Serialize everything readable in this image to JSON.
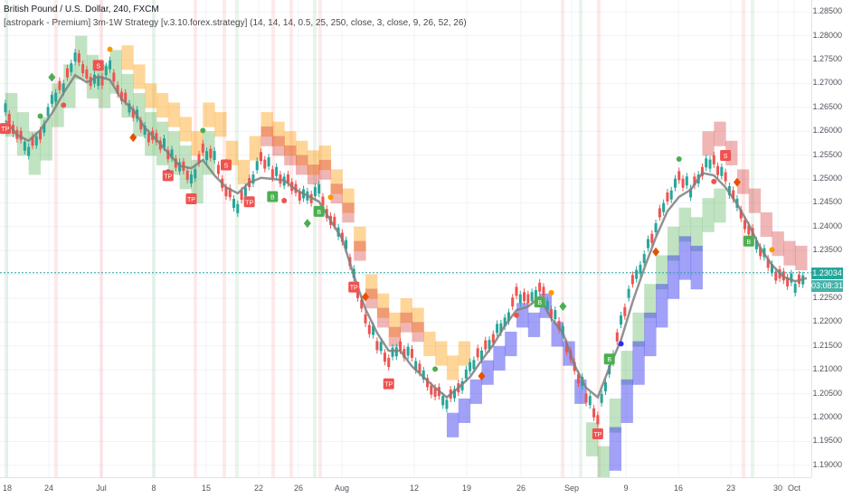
{
  "chart": {
    "symbol_line": "British Pound / U.S. Dollar, 240, FXCM",
    "indicator_line": "[astropark - Premium] 3m-1W Strategy [v.3.10.forex.strategy] (14, 14, 14, 0.5, 25, 250, close, 3, close, 9, 26, 52, 26)",
    "last_price": "1.23034",
    "countdown": "03:08:31",
    "price_axis_ticks": [
      "1.28500",
      "1.28000",
      "1.27500",
      "1.27000",
      "1.26500",
      "1.26000",
      "1.25500",
      "1.25000",
      "1.24500",
      "1.24000",
      "1.23500",
      "1.23000",
      "1.22500",
      "1.22000",
      "1.21500",
      "1.21000",
      "1.20500",
      "1.20000",
      "1.19500",
      "1.19000"
    ],
    "time_axis_labels": [
      "18",
      "24",
      "Jul",
      "8",
      "15",
      "22",
      "26",
      "Aug",
      "12",
      "19",
      "26",
      "Sep",
      "9",
      "16",
      "23",
      "30",
      "Oct"
    ],
    "marker_labels": {
      "take_profit": "TP",
      "sell": "S",
      "buy": "B"
    },
    "colors": {
      "up_candle": "#26a69a",
      "down_candle": "#ef5350",
      "cloud_green": "#4caf50",
      "cloud_orange": "#ff9800",
      "cloud_red": "#d32f2f",
      "cloud_blue": "#2f2ff0",
      "price_tag": "#26a69a"
    }
  },
  "chart_data": {
    "type": "candlestick",
    "title": "British Pound / U.S. Dollar, 240, FXCM",
    "ylim": [
      1.1875,
      1.2875
    ],
    "x_categories": [
      "18",
      "24",
      "Jul",
      "8",
      "15",
      "22",
      "26",
      "Aug",
      "12",
      "19",
      "26",
      "Sep",
      "9",
      "16",
      "23",
      "30",
      "Oct"
    ],
    "price_path": [
      1.264,
      1.26,
      1.256,
      1.259,
      1.266,
      1.27,
      1.276,
      1.272,
      1.27,
      1.273,
      1.268,
      1.264,
      1.26,
      1.258,
      1.256,
      1.253,
      1.25,
      1.256,
      1.254,
      1.248,
      1.244,
      1.249,
      1.254,
      1.252,
      1.25,
      1.248,
      1.246,
      1.247,
      1.242,
      1.238,
      1.23,
      1.22,
      1.216,
      1.212,
      1.215,
      1.213,
      1.208,
      1.206,
      1.203,
      1.206,
      1.21,
      1.214,
      1.217,
      1.22,
      1.226,
      1.224,
      1.228,
      1.222,
      1.218,
      1.21,
      1.205,
      1.2,
      1.21,
      1.22,
      1.228,
      1.234,
      1.24,
      1.246,
      1.25,
      1.248,
      1.252,
      1.254,
      1.25,
      1.244,
      1.24,
      1.235,
      1.231,
      1.229,
      1.228,
      1.2303
    ],
    "last_price": 1.23034,
    "grid": true
  }
}
